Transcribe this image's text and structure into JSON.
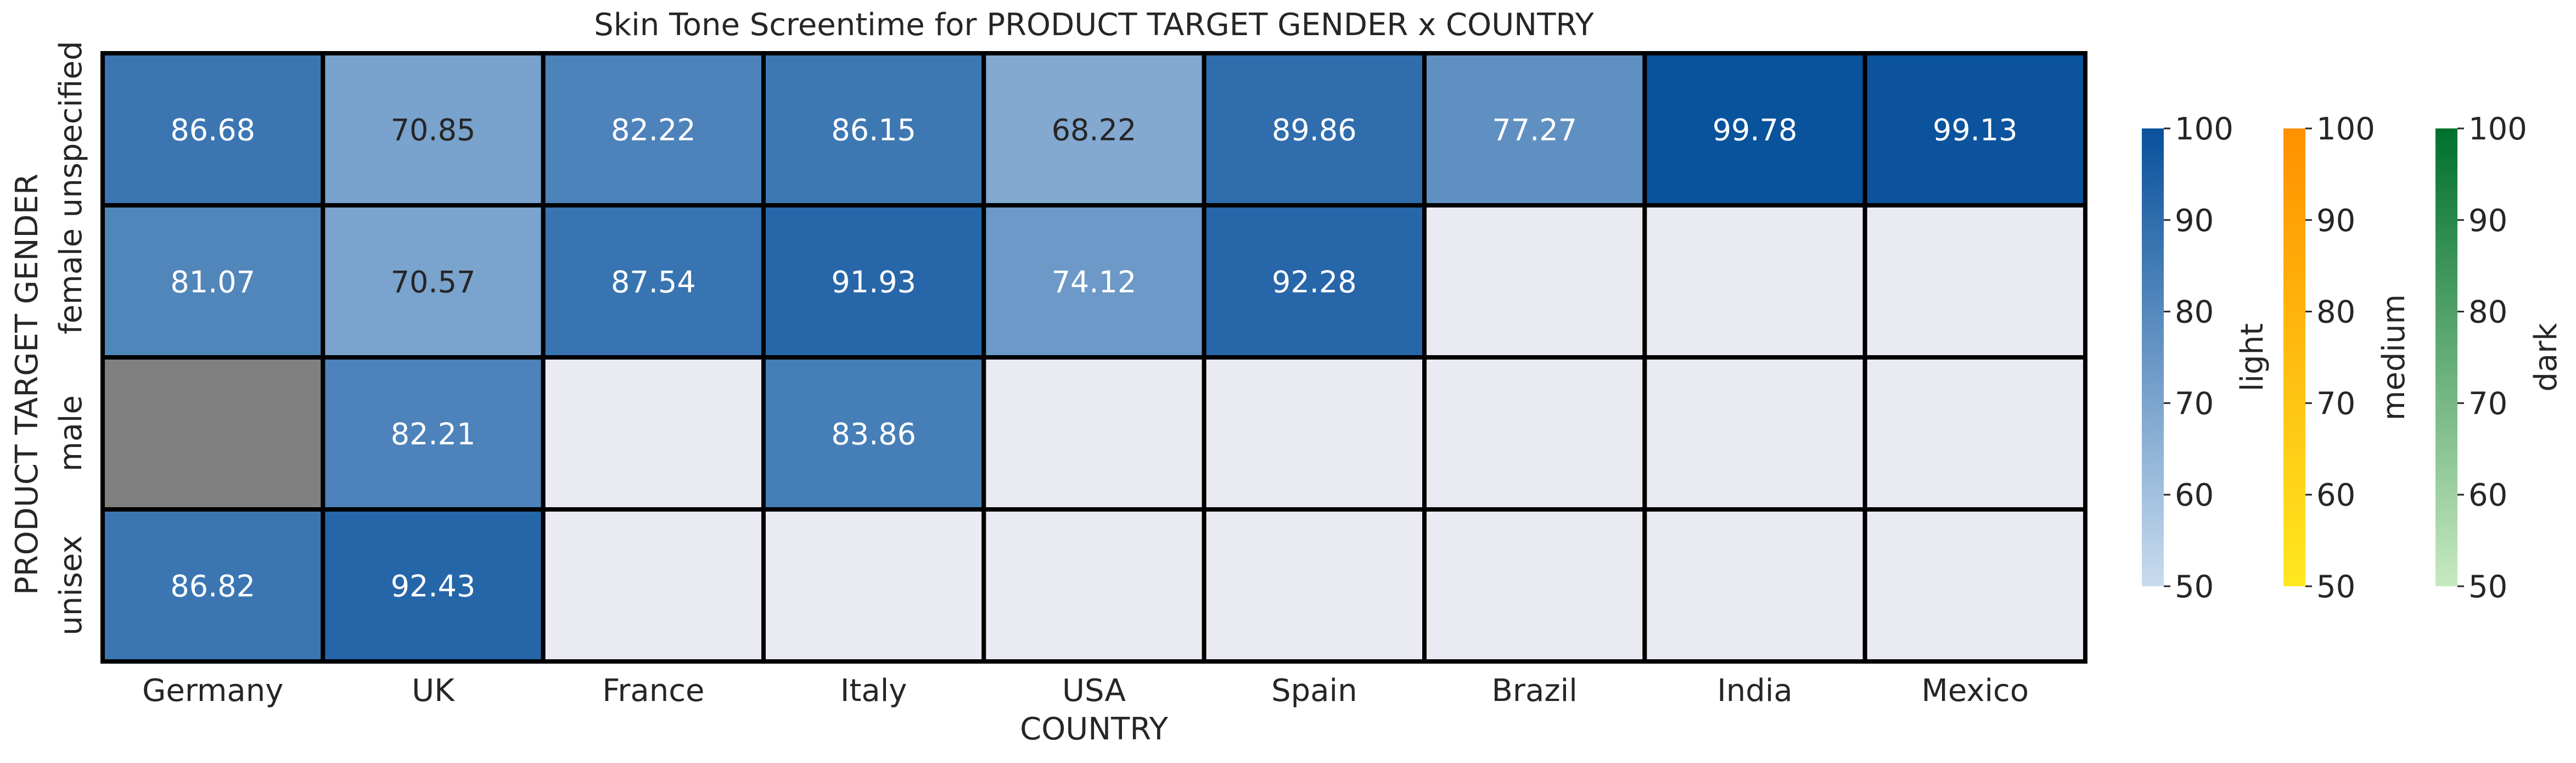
{
  "chart_data": {
    "type": "heatmap",
    "title": "Skin Tone Screentime for PRODUCT TARGET GENDER x COUNTRY",
    "xlabel": "COUNTRY",
    "ylabel": "PRODUCT TARGET GENDER",
    "x_categories": [
      "Germany",
      "UK",
      "France",
      "Italy",
      "USA",
      "Spain",
      "Brazil",
      "India",
      "Mexico"
    ],
    "y_categories": [
      "unspecified",
      "female",
      "male",
      "unisex"
    ],
    "cells": [
      [
        86.68,
        70.85,
        82.22,
        86.15,
        68.22,
        89.86,
        77.27,
        99.78,
        99.13
      ],
      [
        81.07,
        70.57,
        87.54,
        91.93,
        74.12,
        92.28,
        null,
        null,
        null
      ],
      [
        null,
        82.21,
        null,
        83.86,
        null,
        null,
        null,
        null,
        null
      ],
      [
        86.82,
        92.43,
        null,
        null,
        null,
        null,
        null,
        null,
        null
      ]
    ],
    "cell_category": [
      [
        "light",
        "light",
        "light",
        "light",
        "light",
        "light",
        "light",
        "light",
        "light"
      ],
      [
        "light",
        "light",
        "light",
        "light",
        "light",
        "light",
        null,
        null,
        null
      ],
      [
        "other",
        "light",
        null,
        "light",
        null,
        null,
        null,
        null,
        null
      ],
      [
        "light",
        "light",
        null,
        null,
        null,
        null,
        null,
        null,
        null
      ]
    ],
    "colorbars": [
      {
        "label": "light",
        "range": [
          50,
          100
        ],
        "ticks": [
          "50",
          "60",
          "70",
          "80",
          "90",
          "100"
        ],
        "color_low": "#c9dcef",
        "color_high": "#08519c"
      },
      {
        "label": "medium",
        "range": [
          50,
          100
        ],
        "ticks": [
          "50",
          "60",
          "70",
          "80",
          "90",
          "100"
        ],
        "color_low": "#ffe81f",
        "color_high": "#ff9000"
      },
      {
        "label": "dark",
        "range": [
          50,
          100
        ],
        "ticks": [
          "50",
          "60",
          "70",
          "80",
          "90",
          "100"
        ],
        "color_low": "#c7e9c0",
        "color_high": "#00702e"
      }
    ],
    "empty_cell_color": "#eaeaf2",
    "other_cell_color": "#808080",
    "grid_color": "#000000"
  }
}
